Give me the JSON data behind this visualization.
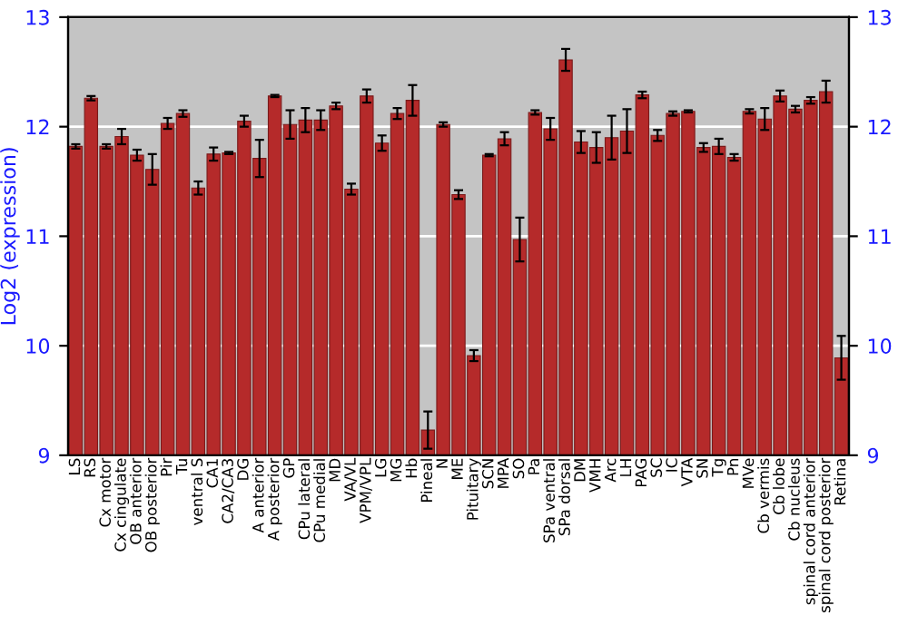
{
  "chart_data": {
    "type": "bar",
    "ylabel": "Log2 (expression)",
    "categories": [
      "LS",
      "RS",
      "Cx motor",
      "Cx cingulate",
      "OB anterior",
      "OB posterior",
      "Pir",
      "Tu",
      "ventral S",
      "CA1",
      "CA2/CA3",
      "DG",
      "A anterior",
      "A posterior",
      "GP",
      "CPu lateral",
      "CPu medial",
      "MD",
      "VA/VL",
      "VPM/VPL",
      "LG",
      "MG",
      "Hb",
      "Pineal",
      "N",
      "ME",
      "Pituitary",
      "SCN",
      "MPA",
      "SO",
      "Pa",
      "SPa ventral",
      "SPa dorsal",
      "DM",
      "VMH",
      "Arc",
      "LH",
      "PAG",
      "SC",
      "IC",
      "VTA",
      "SN",
      "Tg",
      "Pn",
      "MVe",
      "Cb vermis",
      "Cb lobe",
      "Cb nucleus",
      "spinal cord anterior",
      "spinal cord posterior",
      "Retina"
    ],
    "values": [
      11.82,
      12.26,
      11.82,
      11.91,
      11.74,
      11.61,
      12.03,
      12.12,
      11.44,
      11.75,
      11.76,
      12.05,
      11.71,
      12.28,
      12.02,
      12.06,
      12.06,
      12.19,
      11.43,
      12.28,
      11.85,
      12.12,
      12.24,
      9.23,
      12.02,
      11.38,
      9.91,
      11.74,
      11.89,
      10.97,
      12.13,
      11.98,
      12.61,
      11.86,
      11.81,
      11.9,
      11.96,
      12.29,
      11.92,
      12.12,
      12.14,
      11.81,
      11.82,
      11.72,
      12.14,
      12.07,
      12.28,
      12.16,
      12.24,
      12.32,
      9.89
    ],
    "errors": [
      0.02,
      0.02,
      0.02,
      0.07,
      0.05,
      0.14,
      0.05,
      0.03,
      0.06,
      0.06,
      0.01,
      0.05,
      0.17,
      0.01,
      0.13,
      0.11,
      0.09,
      0.03,
      0.05,
      0.06,
      0.07,
      0.05,
      0.14,
      0.17,
      0.02,
      0.04,
      0.05,
      0.01,
      0.06,
      0.2,
      0.02,
      0.1,
      0.1,
      0.1,
      0.14,
      0.2,
      0.2,
      0.03,
      0.05,
      0.02,
      0.01,
      0.04,
      0.07,
      0.03,
      0.02,
      0.1,
      0.05,
      0.03,
      0.03,
      0.1,
      0.2
    ],
    "color": "#b52a2a",
    "ylim": [
      9,
      13
    ],
    "yticks": [
      9,
      10,
      11,
      12,
      13
    ],
    "y2lim": [
      9,
      13
    ],
    "y2ticks": [
      9,
      10,
      11,
      12,
      13
    ],
    "grid": "y",
    "legend": false
  }
}
